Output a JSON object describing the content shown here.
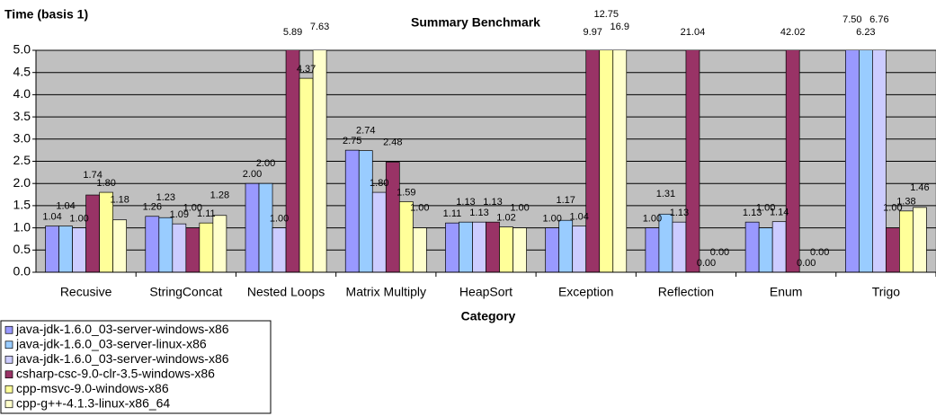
{
  "chart_data": {
    "type": "bar",
    "title": "Summary Benchmark",
    "y_label": "Time (basis 1)",
    "x_label": "Category",
    "categories": [
      "Recusive",
      "StringConcat",
      "Nested Loops",
      "Matrix Multiply",
      "HeapSort",
      "Exception",
      "Reflection",
      "Enum",
      "Trigo"
    ],
    "series": [
      {
        "name": "java-jdk-1.6.0_03-server-windows-x86",
        "color": "#9999ff",
        "values": [
          1.04,
          1.26,
          2.0,
          2.75,
          1.11,
          1.0,
          1.0,
          1.13,
          7.5
        ],
        "value_labels": [
          "1.04",
          "1.26",
          "2.00",
          "2.75",
          "1.11",
          "1.00",
          "1.00",
          "1.13",
          "7.50"
        ]
      },
      {
        "name": "java-jdk-1.6.0_03-server-linux-x86",
        "color": "#99ccff",
        "values": [
          1.04,
          1.23,
          2.0,
          2.74,
          1.13,
          1.17,
          1.31,
          1.0,
          6.23
        ],
        "value_labels": [
          "1.04",
          "1.23",
          "2.00",
          "2.74",
          "1.13",
          "1.17",
          "1.31",
          "1.00",
          "6.23"
        ]
      },
      {
        "name": "java-jdk-1.6.0_03-server-windows-x86",
        "color": "#ccccff",
        "values": [
          1.0,
          1.09,
          1.0,
          1.8,
          1.13,
          1.04,
          1.13,
          1.14,
          6.76
        ],
        "value_labels": [
          "1.00",
          "1.09",
          "1.00",
          "1.80",
          "1.13",
          "1.04",
          "1.13",
          "1.14",
          "6.76"
        ]
      },
      {
        "name": "csharp-csc-9.0-clr-3.5-windows-x86",
        "color": "#993366",
        "values": [
          1.74,
          1.0,
          5.89,
          2.48,
          1.13,
          9.97,
          21.04,
          42.02,
          1.0
        ],
        "value_labels": [
          "1.74",
          "1.00",
          "5.89",
          "2.48",
          "1.13",
          "9.97",
          "21.04",
          "42.02",
          "1.00"
        ]
      },
      {
        "name": "cpp-msvc-9.0-windows-x86",
        "color": "#ffff99",
        "values": [
          1.8,
          1.11,
          4.37,
          1.59,
          1.02,
          12.75,
          0,
          0,
          1.38
        ],
        "value_labels": [
          "1.80",
          "1.11",
          "4.37",
          "1.59",
          "1.02",
          "12.75",
          "0.00",
          "0.00",
          "1.38"
        ]
      },
      {
        "name": "cpp-g++-4.1.3-linux-x86_64",
        "color": "#ffffcc",
        "values": [
          1.18,
          1.28,
          7.63,
          1.0,
          1.0,
          16.9,
          0,
          0,
          1.46
        ],
        "value_labels": [
          "1.18",
          "1.28",
          "7.63",
          "1.00",
          "1.00",
          "16.9",
          "0.00",
          "0.00",
          "1.46"
        ]
      }
    ],
    "ylim": [
      0,
      5
    ],
    "yticks": [
      {
        "value": 0,
        "label": "0.0"
      },
      {
        "value": 0.5,
        "label": "0.5"
      },
      {
        "value": 1,
        "label": "1.0"
      },
      {
        "value": 1.5,
        "label": "1.5"
      },
      {
        "value": 2,
        "label": "2.0"
      },
      {
        "value": 2.5,
        "label": "2.5"
      },
      {
        "value": 3,
        "label": "3.0"
      },
      {
        "value": 3.5,
        "label": "3.5"
      },
      {
        "value": 4,
        "label": "4.0"
      },
      {
        "value": 4.5,
        "label": "4.5"
      },
      {
        "value": 5,
        "label": "5.0"
      }
    ],
    "grid": true,
    "plot_background": "#c0c0c0",
    "legend": "bottom-left"
  }
}
